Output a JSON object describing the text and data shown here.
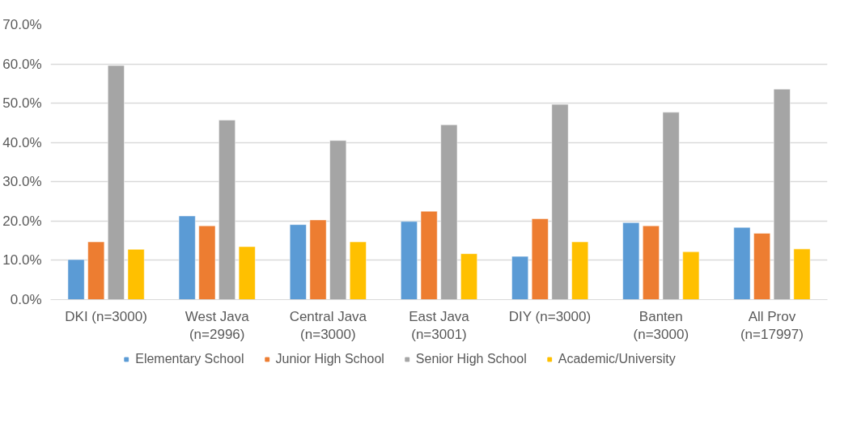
{
  "chart_data": {
    "type": "bar",
    "categories": [
      "DKI (n=3000)",
      "West Java\n(n=2996)",
      "Central Java\n(n=3000)",
      "East Java\n(n=3001)",
      "DIY (n=3000)",
      "Banten\n(n=3000)",
      "All Prov\n(n=17997)"
    ],
    "series": [
      {
        "name": "Elementary School",
        "color": "#5b9bd5",
        "values": [
          10.2,
          21.3,
          19.1,
          19.9,
          11.0,
          19.6,
          18.4
        ]
      },
      {
        "name": "Junior High School",
        "color": "#ed7d31",
        "values": [
          14.7,
          18.8,
          20.3,
          22.5,
          20.6,
          18.8,
          16.9
        ]
      },
      {
        "name": "Senior High School",
        "color": "#a5a5a5",
        "values": [
          59.6,
          45.7,
          40.5,
          44.5,
          49.7,
          47.7,
          53.6
        ]
      },
      {
        "name": "Academic/University",
        "color": "#ffc000",
        "values": [
          12.8,
          13.5,
          14.7,
          11.7,
          14.7,
          12.2,
          12.9
        ]
      }
    ],
    "ylim": [
      0,
      70
    ],
    "yticks": [
      {
        "value": 0,
        "label": "0.0%"
      },
      {
        "value": 10,
        "label": "10.0%"
      },
      {
        "value": 20,
        "label": "20.0%"
      },
      {
        "value": 30,
        "label": "30.0%"
      },
      {
        "value": 40,
        "label": "40.0%"
      },
      {
        "value": 50,
        "label": "50.0%"
      },
      {
        "value": 60,
        "label": "60.0%"
      },
      {
        "value": 70,
        "label": "70.0%"
      }
    ],
    "grid": "y",
    "legend": "bottom"
  }
}
